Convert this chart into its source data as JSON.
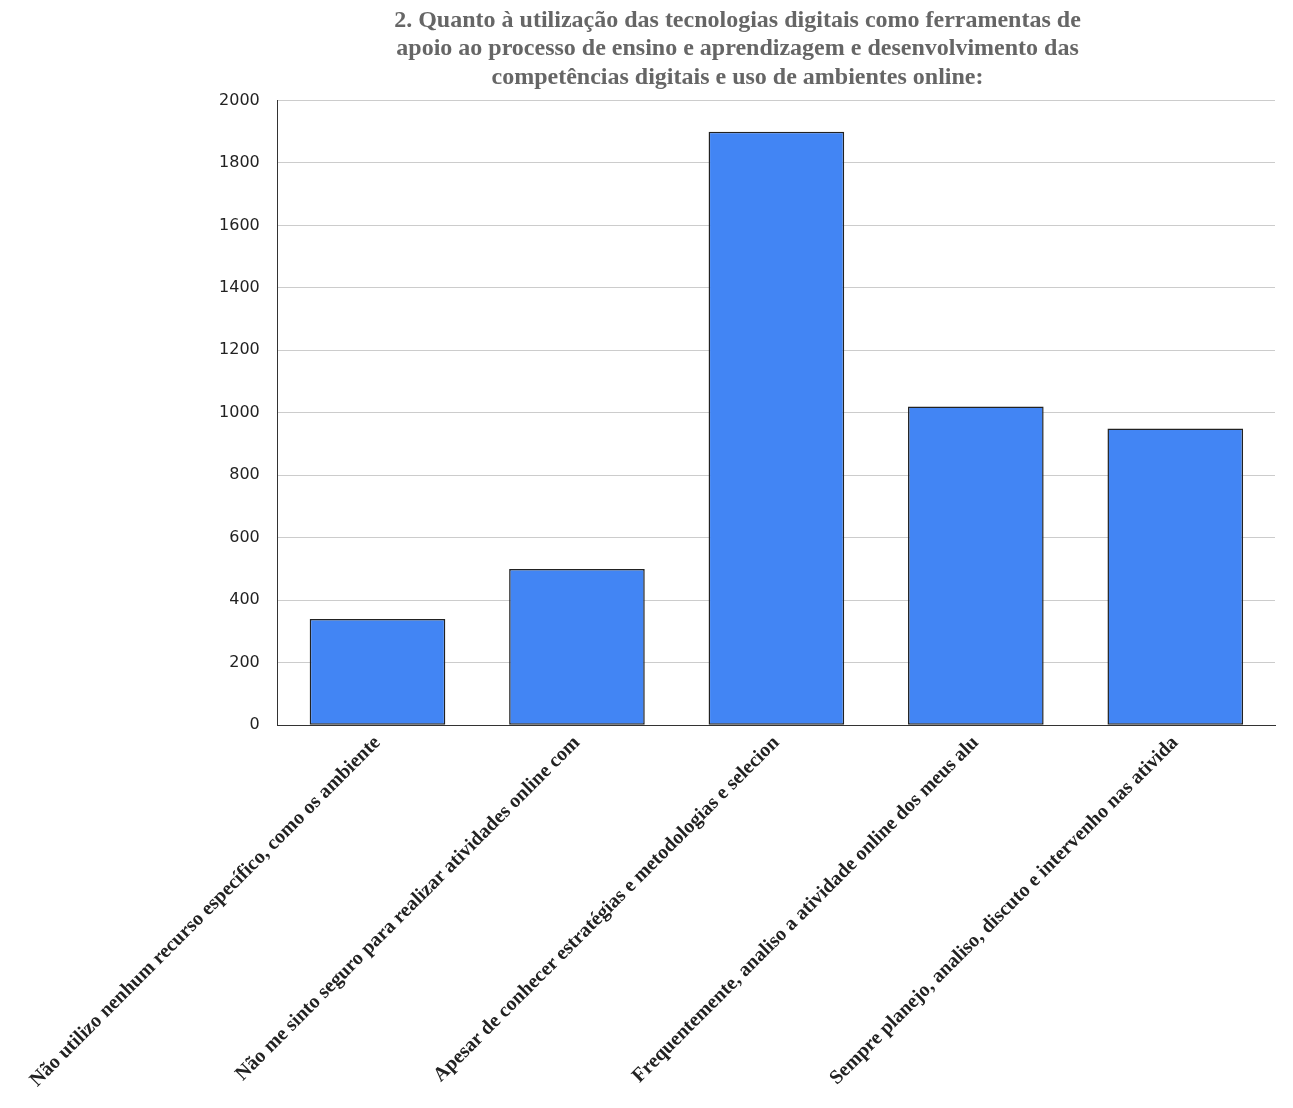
{
  "chart_data": {
    "type": "bar",
    "title": [
      "2. Quanto à utilização das tecnologias digitais como ferramentas de",
      "apoio ao processo de ensino e aprendizagem e desenvolvimento das",
      "competências digitais e uso de ambientes online:"
    ],
    "categories": [
      "Não utilizo nenhum recurso específico, como os ambiente",
      "Não me sinto seguro para realizar atividades online com",
      "Apesar de conhecer estratégias e metodologias e selecion",
      "Frequentemente, analiso a atividade online dos meus alu",
      "Sempre planejo, analiso, discuto e intervenho nas ativida"
    ],
    "values": [
      340,
      500,
      1900,
      1020,
      950
    ],
    "color": "#4285f4",
    "ylim": [
      0,
      2000
    ],
    "yticks": [
      0,
      200,
      400,
      600,
      800,
      1000,
      1200,
      1400,
      1600,
      1800,
      2000
    ],
    "grid": "y",
    "legend": false
  }
}
